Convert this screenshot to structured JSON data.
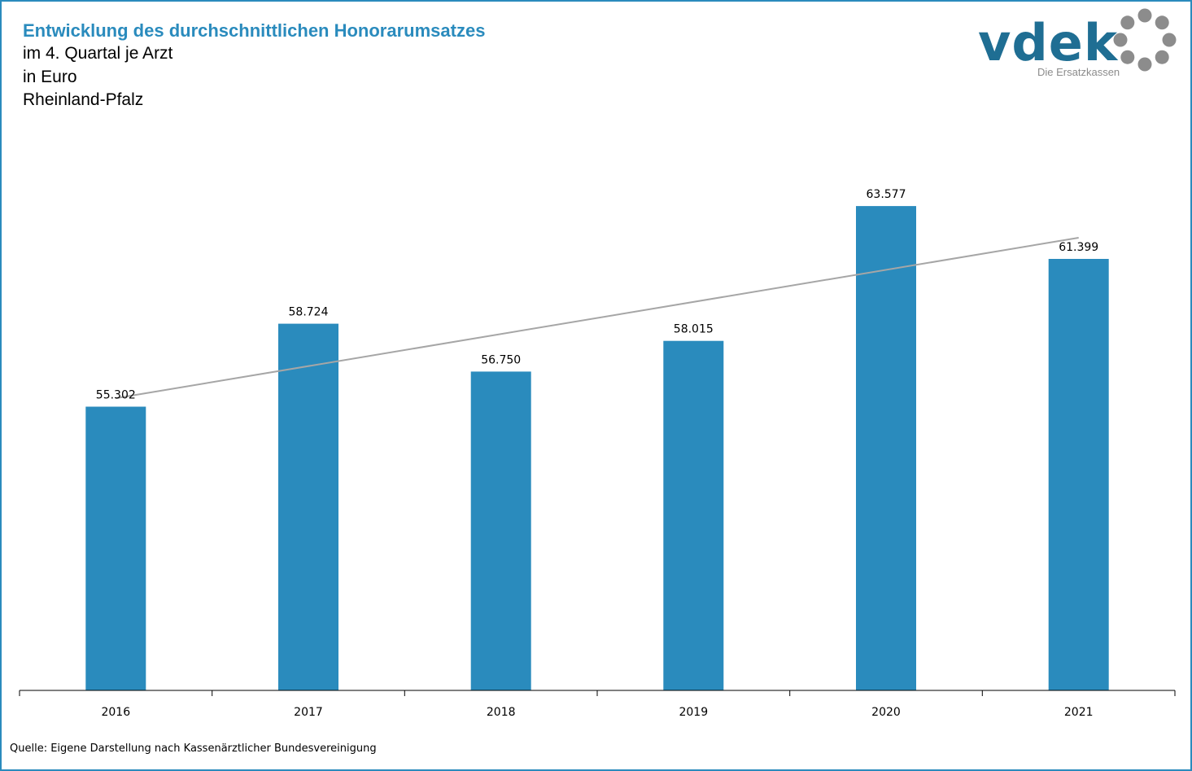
{
  "colors": {
    "border": "#2a8bbd",
    "bar": "#2a8bbd",
    "title": "#2a8bbd",
    "trend": "#a6a6a6",
    "logo_blue": "#1f6e93",
    "logo_gray": "#8c8c8c"
  },
  "logo": {
    "wordmark": "vdek",
    "tagline": "Die Ersatzkassen",
    "icon": "ring-of-dots-icon"
  },
  "source": "Quelle: Eigene Darstellung nach Kassenärztlicher Bundesvereinigung",
  "chart_data": {
    "type": "bar",
    "title": "Entwicklung des durchschnittlichen Honorarumsatzes",
    "subtitle_lines": [
      "im 4. Quartal je Arzt",
      "in Euro",
      "Rheinland-Pfalz"
    ],
    "xlabel": "",
    "ylabel": "",
    "categories": [
      "2016",
      "2017",
      "2018",
      "2019",
      "2020",
      "2021"
    ],
    "series": [
      {
        "values": [
          55302,
          58724,
          56750,
          58015,
          63577,
          61399
        ]
      }
    ],
    "data_labels": [
      "55.302",
      "58.724",
      "56.750",
      "58.015",
      "63.577",
      "61.399"
    ],
    "trendline": {
      "type": "linear",
      "color": "#a6a6a6"
    },
    "ylim": [
      43600,
      66300
    ],
    "grid": false,
    "legend": "none"
  }
}
